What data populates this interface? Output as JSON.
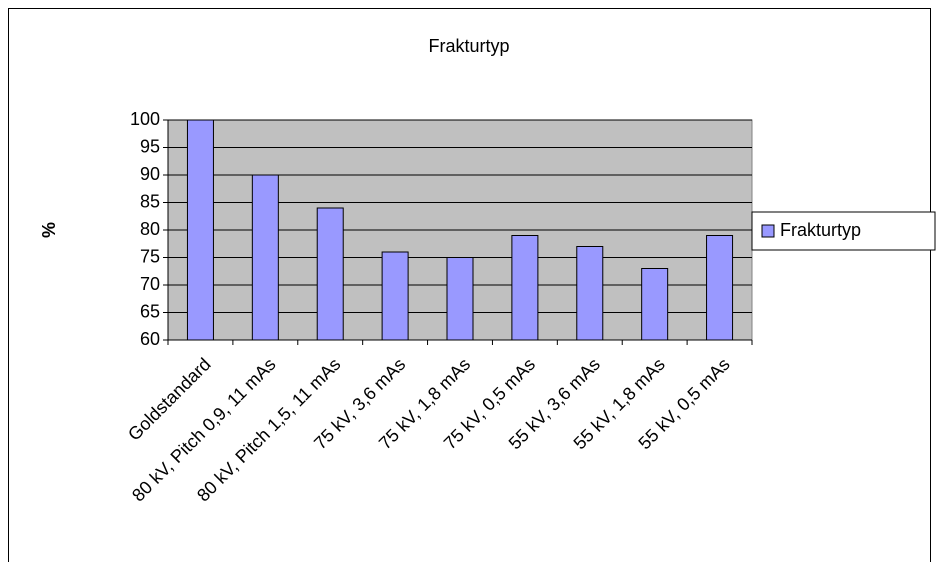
{
  "chart_data": {
    "type": "bar",
    "title": "Frakturtyp",
    "y_label": "%",
    "categories": [
      "Goldstandard",
      "80 kV, Pitch 0,9, 11 mAs",
      "80 kV, Pitch 1,5, 11 mAs",
      "75 kV, 3,6 mAs",
      "75 kV, 1,8 mAs",
      "75 kV, 0,5 mAs",
      "55 kV, 3,6 mAs",
      "55 kV, 1,8 mAs",
      "55 kV, 0,5 mAs"
    ],
    "series": [
      {
        "name": "Frakturtyp",
        "color": "#9999ff",
        "values": [
          100,
          90,
          84,
          76,
          75,
          79,
          77,
          73,
          79
        ]
      }
    ],
    "ylim": [
      60,
      100
    ],
    "yticks": [
      60,
      65,
      70,
      75,
      80,
      85,
      90,
      95,
      100
    ],
    "grid": true,
    "legend": "right"
  }
}
